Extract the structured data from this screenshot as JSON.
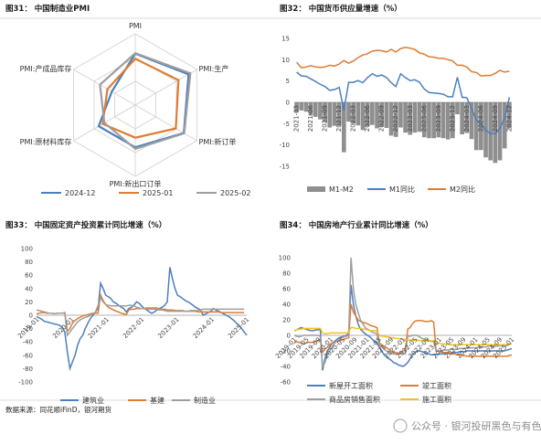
{
  "colors": {
    "blue": "#4a7fc0",
    "orange": "#e07b32",
    "gray": "#9e9e9e",
    "yellow": "#f2c21a",
    "bar": "#8f8f8f"
  },
  "panel1": {
    "title": "图31：   中国制造业PMI",
    "chart_data": {
      "type": "radar",
      "axes": [
        "PMI",
        "PMI:生产",
        "PMI:新订单",
        "PMI:新出口订单",
        "PMI:原材料库存",
        "PMI:产成品库存"
      ],
      "series": [
        {
          "name": "2024-12",
          "values": [
            50.1,
            52.1,
            51.0,
            48.3,
            48.3,
            45.3
          ]
        },
        {
          "name": "2025-01",
          "values": [
            49.1,
            49.8,
            49.2,
            46.4,
            47.4,
            46.3
          ]
        },
        {
          "name": "2025-02",
          "values": [
            50.2,
            52.5,
            51.1,
            48.6,
            47.0,
            48.0
          ]
        }
      ],
      "range": [
        40,
        54
      ]
    }
  },
  "panel2": {
    "title": "图32：   中国货币供应量增速（%）",
    "chart_data": {
      "type": "line",
      "x": [
        "2021-03",
        "2021-04",
        "2021-05",
        "2021-06",
        "2021-07",
        "2021-08",
        "2021-09",
        "2021-10",
        "2021-11",
        "2021-12",
        "2022-01",
        "2022-02",
        "2022-03",
        "2022-04",
        "2022-05",
        "2022-06",
        "2022-07",
        "2022-08",
        "2022-09",
        "2022-10",
        "2022-11",
        "2022-12",
        "2023-01",
        "2023-02",
        "2023-03",
        "2023-04",
        "2023-05",
        "2023-06",
        "2023-07",
        "2023-08",
        "2023-09",
        "2023-10",
        "2023-11",
        "2023-12",
        "2024-01",
        "2024-02",
        "2024-03",
        "2024-04",
        "2024-05",
        "2024-06",
        "2024-07",
        "2024-08",
        "2024-09",
        "2024-10",
        "2024-11",
        "2024-12"
      ],
      "x_tick_labels": [
        "2021-03",
        "2021-06",
        "2021-09",
        "2021-12",
        "2022-03",
        "2022-06",
        "2022-09",
        "2022-12",
        "2023-03",
        "2023-06",
        "2023-09",
        "2023-12",
        "2024-03",
        "2024-06",
        "2024-09",
        "2024-12"
      ],
      "ylim": [
        -15,
        15
      ],
      "yticks": [
        -15,
        -10,
        -5,
        0,
        5,
        10,
        15
      ],
      "series": [
        {
          "name": "M1-M2",
          "type": "bar"
        },
        {
          "name": "M1同比",
          "values": [
            7.1,
            6.2,
            6.1,
            5.5,
            4.9,
            4.2,
            3.7,
            2.8,
            3.0,
            3.5,
            -1.9,
            4.7,
            4.7,
            5.1,
            4.6,
            5.8,
            6.7,
            6.1,
            6.4,
            5.8,
            4.6,
            3.7,
            6.7,
            5.8,
            5.1,
            5.3,
            4.7,
            3.1,
            2.3,
            2.2,
            2.1,
            1.9,
            1.3,
            1.3,
            5.9,
            1.2,
            1.1,
            -1.4,
            -4.2,
            -5.0,
            -6.6,
            -7.3,
            -7.4,
            -6.1,
            -3.7,
            1.2
          ]
        },
        {
          "name": "M2同比",
          "values": [
            9.4,
            8.1,
            8.3,
            8.6,
            8.3,
            8.2,
            8.3,
            8.7,
            8.5,
            9.0,
            9.8,
            9.2,
            9.7,
            10.5,
            11.1,
            11.4,
            12.0,
            12.2,
            12.1,
            11.8,
            12.4,
            11.8,
            12.6,
            12.9,
            12.7,
            12.4,
            11.6,
            11.3,
            10.7,
            10.6,
            10.3,
            10.3,
            10.0,
            9.7,
            8.7,
            8.7,
            8.3,
            7.2,
            7.0,
            6.2,
            6.3,
            6.3,
            6.8,
            7.5,
            7.1,
            7.3
          ]
        }
      ]
    }
  },
  "panel3": {
    "title": "图33：   中国固定资产投资累计同比增速（%）",
    "chart_data": {
      "type": "line",
      "x_tick_labels": [
        "2019-01",
        "2020-01",
        "2021-01",
        "2022-01",
        "2023-01",
        "2024-01",
        "2025-01"
      ],
      "ylim": [
        -100,
        100
      ],
      "yticks": [
        -100,
        -80,
        -60,
        -40,
        -20,
        0,
        20,
        40,
        60,
        80,
        100
      ],
      "series": [
        {
          "name": "建筑业",
          "values": [
            -2,
            -4,
            -6,
            -9,
            -10,
            -11,
            -12,
            -13,
            -14,
            -15,
            -18,
            -25,
            -55,
            -80,
            -70,
            -60,
            -45,
            -35,
            -30,
            -20,
            -12,
            -5,
            0,
            5,
            10,
            48,
            40,
            30,
            28,
            25,
            20,
            18,
            15,
            12,
            10,
            5,
            10,
            12,
            15,
            20,
            18,
            14,
            10,
            8,
            5,
            3,
            5,
            8,
            10,
            12,
            15,
            20,
            72,
            55,
            40,
            30,
            28,
            25,
            22,
            20,
            18,
            15,
            12,
            10,
            8,
            0,
            2,
            4,
            6,
            10,
            8,
            6,
            4,
            2,
            0,
            -2,
            -5,
            -8,
            -12,
            -15,
            -20,
            -25,
            -30
          ]
        },
        {
          "name": "基建",
          "values": [
            2,
            3,
            4,
            4,
            3,
            3,
            3,
            2,
            3,
            3,
            3,
            4,
            -24,
            -20,
            -12,
            -8,
            -5,
            -3,
            -1,
            0,
            1,
            2,
            3,
            3,
            3,
            30,
            22,
            16,
            12,
            10,
            8,
            6,
            5,
            3,
            2,
            1,
            8,
            9,
            9,
            10,
            10,
            10,
            10,
            11,
            11,
            11,
            11,
            11,
            9,
            9,
            9,
            8,
            8,
            8,
            7,
            7,
            7,
            7,
            6,
            6,
            6,
            6,
            6,
            5,
            5,
            5,
            5,
            5,
            5,
            5,
            5,
            5,
            4,
            4,
            4,
            4,
            4,
            4,
            4,
            4,
            4,
            4
          ]
        },
        {
          "name": "制造业",
          "values": [
            8,
            7,
            6,
            5,
            4,
            3,
            3,
            2,
            3,
            3,
            3,
            3,
            -30,
            -25,
            -20,
            -15,
            -10,
            -7,
            -5,
            -3,
            -2,
            0,
            2,
            5,
            15,
            26,
            20,
            16,
            15,
            14,
            14,
            14,
            14,
            14,
            14,
            14,
            15,
            15,
            14,
            12,
            11,
            10,
            10,
            9,
            9,
            9,
            9,
            9,
            8,
            8,
            7,
            6,
            6,
            6,
            6,
            6,
            6,
            6,
            6,
            6,
            7,
            7,
            7,
            7,
            8,
            9,
            9,
            9,
            9,
            9,
            9,
            9,
            9,
            9,
            9,
            9,
            9,
            9,
            9,
            9,
            9,
            9
          ]
        }
      ]
    }
  },
  "panel4": {
    "title": "图34：   中国房地产行业累计同比增速（%）",
    "chart_data": {
      "type": "line",
      "x_tick_labels": [
        "2019-01",
        "2019-05",
        "2019-09",
        "2020-01",
        "2020-05",
        "2020-09",
        "2021-01",
        "2021-05",
        "2021-09",
        "2022-01",
        "2022-05",
        "2022-09",
        "2023-01",
        "2023-05",
        "2023-09",
        "2024-01",
        "2024-05",
        "2024-09",
        "2025-01"
      ],
      "ylim": [
        -60,
        100
      ],
      "yticks": [
        -60,
        -40,
        -20,
        0,
        20,
        40,
        60,
        80,
        100
      ],
      "series": [
        {
          "name": "新屋开工面积",
          "values": [
            6,
            7,
            9,
            10,
            9,
            8,
            7,
            6,
            6,
            7,
            7,
            8,
            -45,
            -30,
            -20,
            -15,
            -10,
            -8,
            -5,
            -3,
            -2,
            -1,
            0,
            2,
            65,
            40,
            25,
            15,
            8,
            5,
            2,
            0,
            -2,
            -5,
            -8,
            -10,
            -15,
            -20,
            -25,
            -28,
            -30,
            -32,
            -35,
            -36,
            -38,
            -39,
            -40,
            -38,
            -35,
            -30,
            -25,
            -22,
            -20,
            -20,
            -21,
            -22,
            -23,
            -24,
            -25,
            -25,
            -25,
            -24,
            -24,
            -24,
            -23,
            -23,
            -23,
            -22,
            -22,
            -22,
            -21,
            -21,
            -21,
            -20,
            -20,
            -20,
            -20,
            -20,
            -20,
            -20,
            -20,
            -20,
            -20,
            -20,
            -20,
            -20,
            -20,
            -20,
            -20,
            -20,
            -19,
            -18,
            -17
          ]
        },
        {
          "name": "竣工面积",
          "values": [
            -10,
            -8,
            -9,
            -10,
            -11,
            -10,
            -9,
            -9,
            -9,
            -8,
            -7,
            -6,
            -22,
            -18,
            -15,
            -12,
            -10,
            -9,
            -8,
            -7,
            -6,
            -5,
            -4,
            -3,
            40,
            30,
            25,
            20,
            18,
            17,
            16,
            15,
            13,
            12,
            11,
            10,
            -10,
            -12,
            -14,
            -16,
            -18,
            -20,
            -22,
            -22,
            -23,
            -22,
            -20,
            -18,
            8,
            10,
            15,
            18,
            19,
            19,
            19,
            18,
            18,
            18,
            19,
            17,
            -20,
            -20,
            -21,
            -22,
            -22,
            -22,
            -23,
            -24,
            -24,
            -25,
            -25,
            -26,
            -26,
            -27,
            -27,
            -27,
            -27,
            -27,
            -27,
            -27,
            -27,
            -27,
            -27,
            -27,
            -27,
            -27,
            -27,
            -27,
            -27,
            -27,
            -27,
            -26,
            -25
          ]
        },
        {
          "name": "商品房销售面积",
          "values": [
            0,
            -1,
            -2,
            -1,
            0,
            0,
            0,
            0,
            0,
            0,
            0,
            -1,
            -40,
            -35,
            -25,
            -20,
            -15,
            -10,
            -8,
            -5,
            -3,
            -2,
            -1,
            0,
            100,
            60,
            40,
            30,
            20,
            15,
            10,
            8,
            6,
            4,
            3,
            2,
            -12,
            -15,
            -18,
            -20,
            -22,
            -23,
            -24,
            -24,
            -24,
            -23,
            -23,
            -24,
            -1,
            -1,
            0,
            0,
            0,
            -2,
            -4,
            -5,
            -6,
            -7,
            -8,
            -8,
            -20,
            -20,
            -20,
            -19,
            -19,
            -19,
            -18,
            -18,
            -18,
            -18,
            -17,
            -17,
            -17,
            -16,
            -16,
            -16,
            -16,
            -16,
            -15,
            -15,
            -15,
            -15,
            -14,
            -14,
            -14,
            -14,
            -14,
            -13,
            -13,
            -13,
            -13,
            -12
          ]
        },
        {
          "name": "施工面积",
          "values": [
            6,
            7,
            8,
            8,
            9,
            9,
            9,
            9,
            9,
            9,
            9,
            9,
            3,
            2,
            2,
            3,
            3,
            3,
            3,
            3,
            3,
            3,
            3,
            4,
            10,
            10,
            9,
            9,
            9,
            8,
            8,
            7,
            6,
            6,
            6,
            5,
            0,
            -1,
            -1,
            -2,
            -2,
            -3,
            -3,
            -4,
            -4,
            -5,
            -5,
            -5,
            -6,
            -6,
            -6,
            -6,
            -6,
            -7,
            -7,
            -7,
            -7,
            -7,
            -7,
            -7,
            -10,
            -10,
            -11,
            -11,
            -11,
            -11,
            -12,
            -12,
            -12,
            -12,
            -12,
            -12,
            -12,
            -12,
            -12,
            -12,
            -12,
            -12,
            -12,
            -12,
            -12,
            -12,
            -12,
            -12,
            -12,
            -12,
            -12,
            -12,
            -12,
            -12,
            -12,
            -11,
            -11
          ]
        }
      ]
    }
  },
  "footer": {
    "source": "数据来源：同花顺iFinD，银河期货",
    "watermark": "公众号 · 银河投研黑色与有色"
  }
}
